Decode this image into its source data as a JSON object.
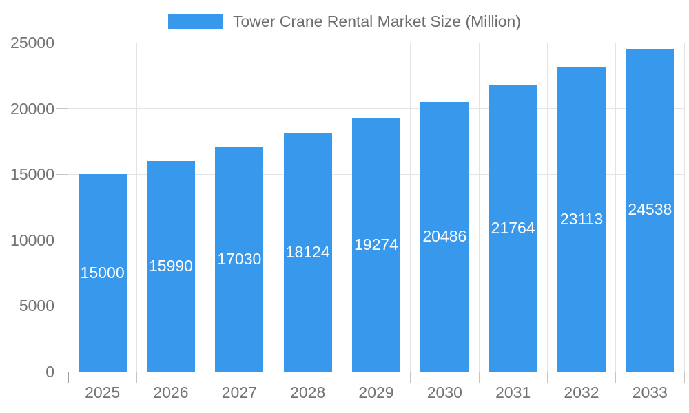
{
  "chart_data": {
    "type": "bar",
    "title": "Tower Crane Rental Market Size (Million)",
    "categories": [
      "2025",
      "2026",
      "2027",
      "2028",
      "2029",
      "2030",
      "2031",
      "2032",
      "2033"
    ],
    "series": [
      {
        "name": "Tower Crane Rental Market Size (Million)",
        "values": [
          15000,
          15990,
          17030,
          18124,
          19274,
          20486,
          21764,
          23113,
          24538
        ]
      }
    ],
    "xlabel": "",
    "ylabel": "",
    "ylim": [
      0,
      25000
    ],
    "yticks": [
      0,
      5000,
      10000,
      15000,
      20000,
      25000
    ],
    "grid": true,
    "legend_position": "top-center",
    "value_label_position": "inside-center",
    "colors": {
      "bar": "#3898ec",
      "bar_label": "#ffffff",
      "axis_text": "#737373",
      "legend_text": "#6e6e6e",
      "grid_line": "#e3e3e3",
      "tick_mark": "#c6c6c6",
      "axis_line": "#9e9e9e",
      "background": "#ffffff"
    }
  }
}
